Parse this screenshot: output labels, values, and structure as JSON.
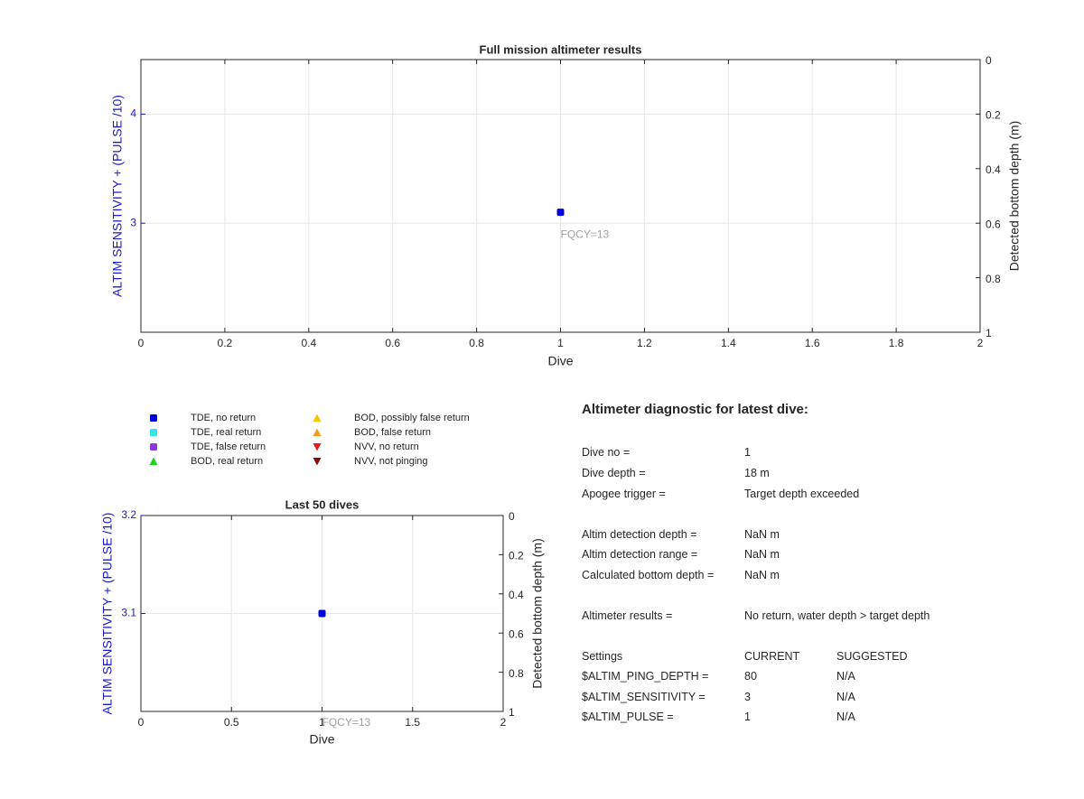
{
  "chart_data": [
    {
      "type": "scatter",
      "title": "Full mission altimeter results",
      "xlabel": "Dive",
      "ylabel": "ALTIM SENSITIVITY + (PULSE /10)",
      "y2label": "Detected bottom depth (m)",
      "xlim": [
        0,
        2
      ],
      "ylim": [
        2,
        4.5
      ],
      "y2lim": [
        0,
        1
      ],
      "y2_reversed": true,
      "xticks": [
        "0",
        "0.2",
        "0.4",
        "0.6",
        "0.8",
        "1",
        "1.2",
        "1.4",
        "1.6",
        "1.8",
        "2"
      ],
      "yticks": [
        "3",
        "4"
      ],
      "y2ticks": [
        "0",
        "0.2",
        "0.4",
        "0.6",
        "0.8",
        "1"
      ],
      "grid": true,
      "series": [
        {
          "name": "TDE, no return",
          "points": [
            {
              "x": 1,
              "y": 3.1
            }
          ]
        }
      ],
      "annotations": [
        {
          "text": "FQCY=13",
          "x": 1,
          "y": 2.89
        }
      ]
    },
    {
      "type": "scatter",
      "title": "Last 50 dives",
      "xlabel": "Dive",
      "ylabel": "ALTIM SENSITIVITY + (PULSE /10)",
      "y2label": "Detected bottom depth (m)",
      "xlim": [
        0,
        2
      ],
      "ylim": [
        3,
        3.2
      ],
      "y2lim": [
        0,
        1
      ],
      "y2_reversed": true,
      "xticks": [
        "0",
        "0.5",
        "1",
        "1.5",
        "2"
      ],
      "yticks": [
        "3.1",
        "3.2"
      ],
      "y2ticks": [
        "0",
        "0.2",
        "0.4",
        "0.6",
        "0.8",
        "1"
      ],
      "grid": true,
      "series": [
        {
          "name": "TDE, no return",
          "points": [
            {
              "x": 1,
              "y": 3.1
            }
          ]
        }
      ],
      "annotations": [
        {
          "text": "FQCY=13",
          "x": 1,
          "y": 2.988
        }
      ]
    }
  ],
  "legend": [
    {
      "label": "TDE, no return",
      "marker": "square",
      "color": "#0000dd"
    },
    {
      "label": "TDE, real return",
      "marker": "square",
      "color": "#33e6e6"
    },
    {
      "label": "TDE, false return",
      "marker": "square",
      "color": "#8a3ad6"
    },
    {
      "label": "BOD, real return",
      "marker": "triangle-up",
      "color": "#1ed21e"
    },
    {
      "label": "BOD, possibly false return",
      "marker": "triangle-up",
      "color": "#f2c800"
    },
    {
      "label": "BOD, false return",
      "marker": "triangle-up",
      "color": "#f29a1a"
    },
    {
      "label": "NVV, no return",
      "marker": "triangle-down",
      "color": "#e61a1a"
    },
    {
      "label": "NVV, not pinging",
      "marker": "triangle-down",
      "color": "#8a0a0a"
    }
  ],
  "diagnostic": {
    "title": "Altimeter diagnostic for latest dive:",
    "dive_no": {
      "label": "Dive no =",
      "value": "1"
    },
    "dive_depth": {
      "label": "Dive depth =",
      "value": "18 m"
    },
    "apogee_trigger": {
      "label": "Apogee trigger =",
      "value": "Target depth exceeded"
    },
    "detection_depth": {
      "label": "Altim detection depth =",
      "value": "NaN m"
    },
    "detection_range": {
      "label": "Altim detection range =",
      "value": "NaN m"
    },
    "bottom_depth": {
      "label": "Calculated bottom depth =",
      "value": "NaN m"
    },
    "results": {
      "label": "Altimeter results =",
      "value": "No return, water depth > target depth"
    },
    "settings_header": {
      "label": "Settings",
      "current": "CURRENT",
      "suggested": "SUGGESTED"
    },
    "ping_depth": {
      "label": "$ALTIM_PING_DEPTH =",
      "current": "80",
      "suggested": "N/A"
    },
    "sensitivity": {
      "label": "$ALTIM_SENSITIVITY =",
      "current": "3",
      "suggested": "N/A"
    },
    "pulse": {
      "label": "$ALTIM_PULSE =",
      "current": "1",
      "suggested": "N/A"
    }
  },
  "colors": {
    "axis": "#262626",
    "grid": "#e6e6e6",
    "left_axis_label": "#1a1acc",
    "annotation": "#a0a0a0",
    "marker": "#0000dd"
  }
}
